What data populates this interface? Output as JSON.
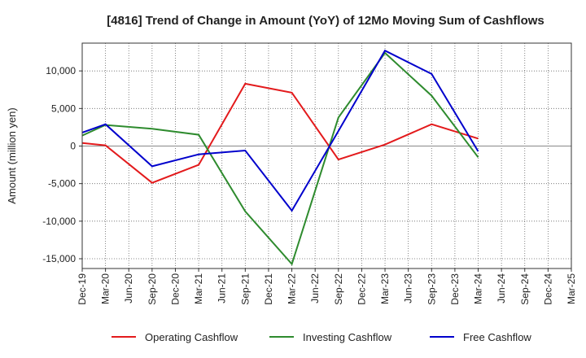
{
  "chart_data": {
    "type": "line",
    "title": "[4816]  Trend of Change in Amount (YoY) of 12Mo Moving Sum of Cashflows",
    "xlabel": "",
    "ylabel": "Amount (million yen)",
    "ylim": [
      -16300,
      13700
    ],
    "yticks": [
      10000,
      5000,
      0,
      -5000,
      -10000,
      -15000
    ],
    "ytick_labels": [
      "10,000",
      "5,000",
      "0",
      "-5,000",
      "-10,000",
      "-15,000"
    ],
    "categories": [
      "Dec-19",
      "Mar-20",
      "Jun-20",
      "Sep-20",
      "Dec-20",
      "Mar-21",
      "Jun-21",
      "Sep-21",
      "Dec-21",
      "Mar-22",
      "Jun-22",
      "Sep-22",
      "Dec-22",
      "Mar-23",
      "Jun-23",
      "Sep-23",
      "Dec-23",
      "Mar-24",
      "Jun-24",
      "Sep-24",
      "Dec-24",
      "Mar-25"
    ],
    "grid": true,
    "legend": "bottom",
    "series": [
      {
        "name": "Operating Cashflow",
        "color": "#e31a1c",
        "values": [
          400,
          100,
          null,
          -4900,
          null,
          -2500,
          null,
          8300,
          null,
          7100,
          null,
          -1800,
          null,
          200,
          null,
          2900,
          null,
          1000,
          null,
          null,
          null,
          null
        ]
      },
      {
        "name": "Investing Cashflow",
        "color": "#2e8b2e",
        "values": [
          1400,
          2800,
          null,
          2300,
          null,
          1500,
          null,
          -8700,
          null,
          -15700,
          null,
          3800,
          null,
          12400,
          null,
          6700,
          null,
          -1500,
          null,
          null,
          null,
          null
        ]
      },
      {
        "name": "Free Cashflow",
        "color": "#0000cc",
        "values": [
          1800,
          2900,
          null,
          -2700,
          null,
          -1100,
          null,
          -600,
          null,
          -8600,
          null,
          2000,
          null,
          12700,
          null,
          9600,
          null,
          -700,
          null,
          null,
          null,
          null
        ]
      }
    ]
  }
}
